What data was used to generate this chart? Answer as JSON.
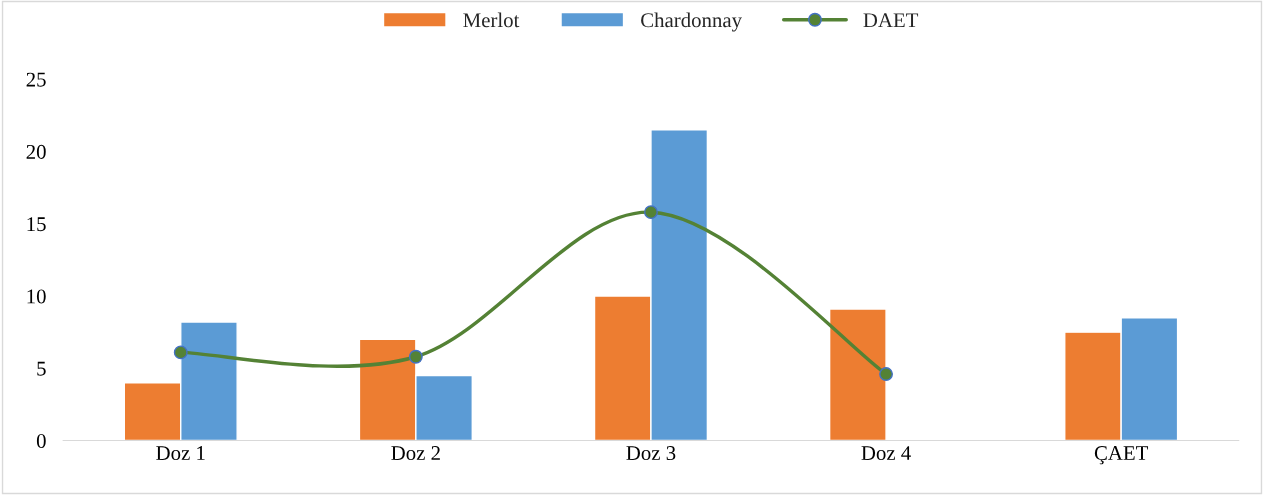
{
  "chart_data": {
    "type": "bar",
    "categories": [
      "Doz 1",
      "Doz 2",
      "Doz 3",
      "Doz 4",
      "ÇAET"
    ],
    "series": [
      {
        "name": "Merlot",
        "color": "#ed7d31",
        "values": [
          4.0,
          7.0,
          10.0,
          9.1,
          7.5
        ]
      },
      {
        "name": "Chardonnay",
        "color": "#5b9bd5",
        "values": [
          8.2,
          4.5,
          21.5,
          null,
          8.5
        ]
      },
      {
        "name": "DAET",
        "type": "line",
        "color": "#548235",
        "marker": "circle",
        "values": [
          6.1,
          5.8,
          15.8,
          4.6,
          null
        ]
      }
    ],
    "ylim": [
      0,
      25
    ],
    "yticks": [
      0,
      5,
      10,
      15,
      20,
      25
    ],
    "grid": false,
    "legend": "top"
  }
}
